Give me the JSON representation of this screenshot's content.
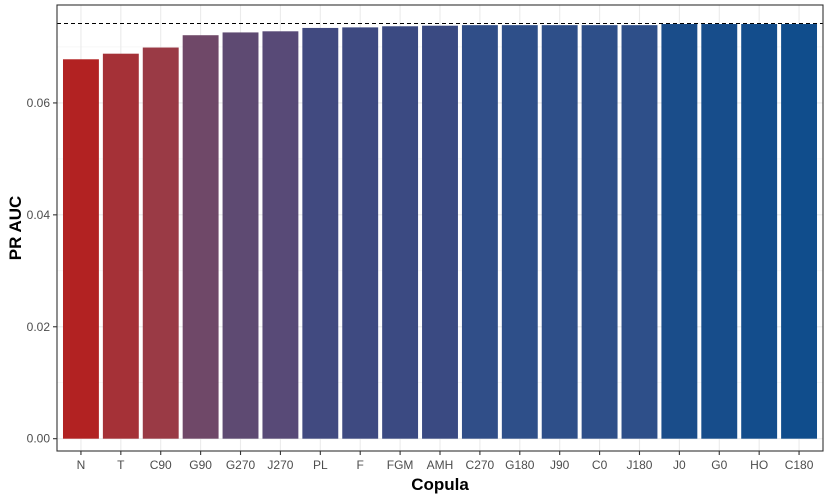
{
  "chart_data": {
    "type": "bar",
    "title": "",
    "xlabel": "Copula",
    "ylabel": "PR AUC",
    "categories": [
      "N",
      "T",
      "C90",
      "G90",
      "G270",
      "J270",
      "PL",
      "F",
      "FGM",
      "AMH",
      "C270",
      "G180",
      "J90",
      "C0",
      "J180",
      "J0",
      "G0",
      "HO",
      "C180"
    ],
    "values": [
      0.0678,
      0.0688,
      0.0699,
      0.0721,
      0.0726,
      0.0728,
      0.0734,
      0.0735,
      0.0737,
      0.0738,
      0.0739,
      0.0739,
      0.0739,
      0.0739,
      0.0739,
      0.0741,
      0.0741,
      0.0741,
      0.0741
    ],
    "colors": [
      "#b22222",
      "#a53137",
      "#9a3a45",
      "#6f4868",
      "#5e4a72",
      "#584a77",
      "#414a80",
      "#3e4a81",
      "#3b4a82",
      "#3a4a82",
      "#304e88",
      "#2e4f89",
      "#2e4f89",
      "#2e4f89",
      "#2e4f89",
      "#1a4d8a",
      "#174d8b",
      "#134d8c",
      "#104d8c"
    ],
    "reference_line": 0.0742,
    "ylim": [
      -0.0022,
      0.0775
    ],
    "yticks": [
      0.0,
      0.02,
      0.04,
      0.06
    ],
    "ytick_labels": [
      "0.00",
      "0.02",
      "0.04",
      "0.06"
    ],
    "grid": true,
    "legend": "none"
  }
}
